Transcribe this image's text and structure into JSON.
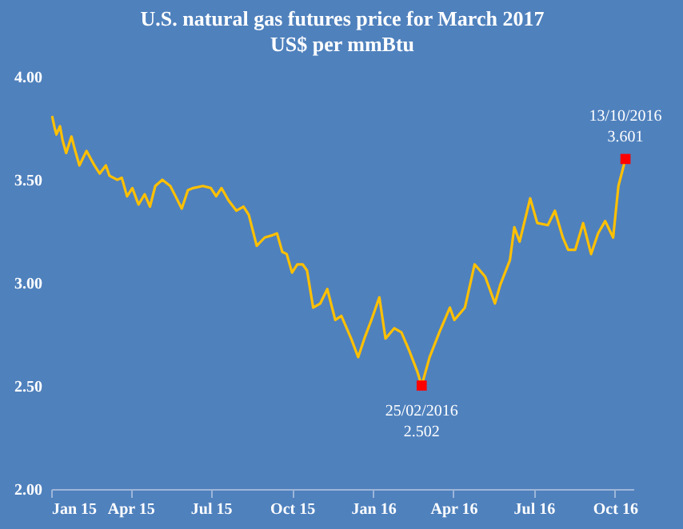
{
  "chart_data": {
    "type": "line",
    "title": "U.S. natural gas futures price for March 2017",
    "subtitle": "US$ per mmBtu",
    "series": [
      {
        "color": "#ffc000",
        "x": [
          "2015-01-02",
          "2015-01-05",
          "2015-01-07",
          "2015-01-11",
          "2015-01-14",
          "2015-01-18",
          "2015-01-24",
          "2015-01-27",
          "2015-02-02",
          "2015-02-10",
          "2015-02-19",
          "2015-02-25",
          "2015-03-04",
          "2015-03-08",
          "2015-03-17",
          "2015-03-22",
          "2015-03-28",
          "2015-04-03",
          "2015-04-10",
          "2015-04-17",
          "2015-04-23",
          "2015-04-29",
          "2015-05-07",
          "2015-05-16",
          "2015-05-22",
          "2015-05-29",
          "2015-06-05",
          "2015-06-11",
          "2015-06-22",
          "2015-07-01",
          "2015-07-07",
          "2015-07-13",
          "2015-07-21",
          "2015-07-30",
          "2015-08-07",
          "2015-08-13",
          "2015-08-22",
          "2015-08-31",
          "2015-09-08",
          "2015-09-14",
          "2015-09-20",
          "2015-09-25",
          "2015-10-01",
          "2015-10-07",
          "2015-10-13",
          "2015-10-18",
          "2015-10-25",
          "2015-11-02",
          "2015-11-10",
          "2015-11-19",
          "2015-11-26",
          "2015-12-07",
          "2015-12-15",
          "2015-12-22",
          "2015-12-30",
          "2016-01-08",
          "2016-01-15",
          "2016-01-25",
          "2016-02-02",
          "2016-02-11",
          "2016-02-20",
          "2016-02-25",
          "2016-03-05",
          "2016-03-16",
          "2016-03-28",
          "2016-04-02",
          "2016-04-14",
          "2016-04-25",
          "2016-05-07",
          "2016-05-18",
          "2016-05-24",
          "2016-06-04",
          "2016-06-09",
          "2016-06-15",
          "2016-06-27",
          "2016-07-05",
          "2016-07-17",
          "2016-07-25",
          "2016-08-03",
          "2016-08-09",
          "2016-08-17",
          "2016-08-26",
          "2016-09-04",
          "2016-09-12",
          "2016-09-20",
          "2016-09-29",
          "2016-10-05",
          "2016-10-13"
        ],
        "values": [
          3.81,
          3.75,
          3.72,
          3.76,
          3.69,
          3.63,
          3.71,
          3.66,
          3.57,
          3.64,
          3.57,
          3.53,
          3.57,
          3.52,
          3.5,
          3.51,
          3.42,
          3.46,
          3.38,
          3.43,
          3.37,
          3.47,
          3.5,
          3.47,
          3.42,
          3.36,
          3.45,
          3.46,
          3.47,
          3.46,
          3.42,
          3.46,
          3.4,
          3.35,
          3.37,
          3.33,
          3.18,
          3.22,
          3.23,
          3.24,
          3.15,
          3.14,
          3.05,
          3.09,
          3.09,
          3.06,
          2.88,
          2.9,
          2.97,
          2.82,
          2.84,
          2.73,
          2.64,
          2.73,
          2.82,
          2.93,
          2.73,
          2.78,
          2.76,
          2.67,
          2.57,
          2.502,
          2.64,
          2.76,
          2.88,
          2.82,
          2.88,
          3.09,
          3.03,
          2.9,
          2.99,
          3.11,
          3.27,
          3.2,
          3.41,
          3.29,
          3.28,
          3.35,
          3.22,
          3.16,
          3.16,
          3.29,
          3.14,
          3.24,
          3.3,
          3.22,
          3.47,
          3.601
        ]
      },
      {
        "type": "scatter",
        "color": "#ff0000",
        "marker": "square",
        "x": [
          "2016-02-25",
          "2016-10-13"
        ],
        "values": [
          2.502,
          3.601
        ]
      }
    ],
    "annotations": [
      {
        "text": "25/02/2016",
        "x": "2016-02-25",
        "y": 2.502
      },
      {
        "text": "2.502",
        "x": "2016-02-25",
        "y": 2.502
      },
      {
        "text": "13/10/2016",
        "x": "2016-10-13",
        "y": 3.601
      },
      {
        "text": "3.601",
        "x": "2016-10-13",
        "y": 3.601
      }
    ],
    "xlim": [
      "2015-01-01",
      "2016-10-22"
    ],
    "xticks": [
      {
        "value": "2015-01-01",
        "label": "Jan 15"
      },
      {
        "value": "2015-04-01",
        "label": "Apr 15"
      },
      {
        "value": "2015-07-01",
        "label": "Jul 15"
      },
      {
        "value": "2015-10-01",
        "label": "Oct 15"
      },
      {
        "value": "2016-01-01",
        "label": "Jan 16"
      },
      {
        "value": "2016-04-01",
        "label": "Apr 16"
      },
      {
        "value": "2016-07-01",
        "label": "Jul 16"
      },
      {
        "value": "2016-10-01",
        "label": "Oct 16"
      }
    ],
    "ylim": [
      2,
      4
    ],
    "yticks": [
      {
        "value": 2,
        "label": "2.00"
      },
      {
        "value": 2.5,
        "label": "2.50"
      },
      {
        "value": 3,
        "label": "3.00"
      },
      {
        "value": 3.5,
        "label": "3.50"
      },
      {
        "value": 4,
        "label": "4.00"
      }
    ],
    "grid": false
  }
}
